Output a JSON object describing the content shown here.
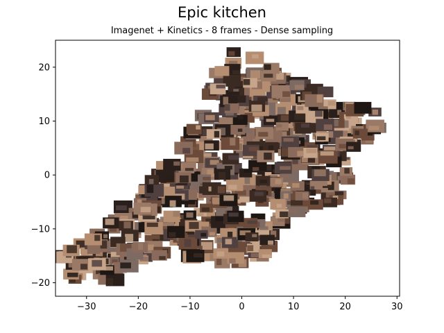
{
  "chart_data": {
    "type": "scatter",
    "title": "Epic kitchen",
    "subtitle": "Imagenet + Kinetics - 8 frames - Dense sampling",
    "xlabel": "",
    "ylabel": "",
    "xlim": [
      -36,
      30.5
    ],
    "ylim": [
      -22.5,
      25
    ],
    "x_ticks": [
      "−30",
      "−20",
      "−10",
      "0",
      "10",
      "20",
      "30"
    ],
    "y_ticks": [
      "−20",
      "−10",
      "0",
      "10",
      "20"
    ],
    "grid": false,
    "marker": "video frame thumbnail",
    "thumbnail_palette": [
      "#3a2a22",
      "#6b4a3a",
      "#9a7a66",
      "#2a1f1a",
      "#c7a58a",
      "#504040",
      "#8a6a5a",
      "#1e1714",
      "#7d6b63",
      "#b58e72"
    ],
    "region": [
      [
        -35,
        -16
      ],
      [
        -33,
        -13
      ],
      [
        -28,
        -10
      ],
      [
        -24,
        -6
      ],
      [
        -20,
        -3
      ],
      [
        -16,
        1
      ],
      [
        -12,
        4
      ],
      [
        -10,
        9
      ],
      [
        -7,
        13
      ],
      [
        -6,
        17
      ],
      [
        -6,
        21
      ],
      [
        -2,
        23
      ],
      [
        3,
        22
      ],
      [
        7,
        19
      ],
      [
        11,
        17
      ],
      [
        18,
        15
      ],
      [
        25,
        13
      ],
      [
        29,
        10
      ],
      [
        25,
        6
      ],
      [
        22,
        1
      ],
      [
        20,
        -3
      ],
      [
        18,
        -5
      ],
      [
        10,
        -7
      ],
      [
        6,
        -12
      ],
      [
        4,
        -16
      ],
      [
        0,
        -17
      ],
      [
        -4,
        -17
      ],
      [
        -8,
        -16
      ],
      [
        -14,
        -15
      ],
      [
        -20,
        -17
      ],
      [
        -26,
        -21
      ],
      [
        -31,
        -20
      ],
      [
        -35,
        -18
      ]
    ]
  }
}
